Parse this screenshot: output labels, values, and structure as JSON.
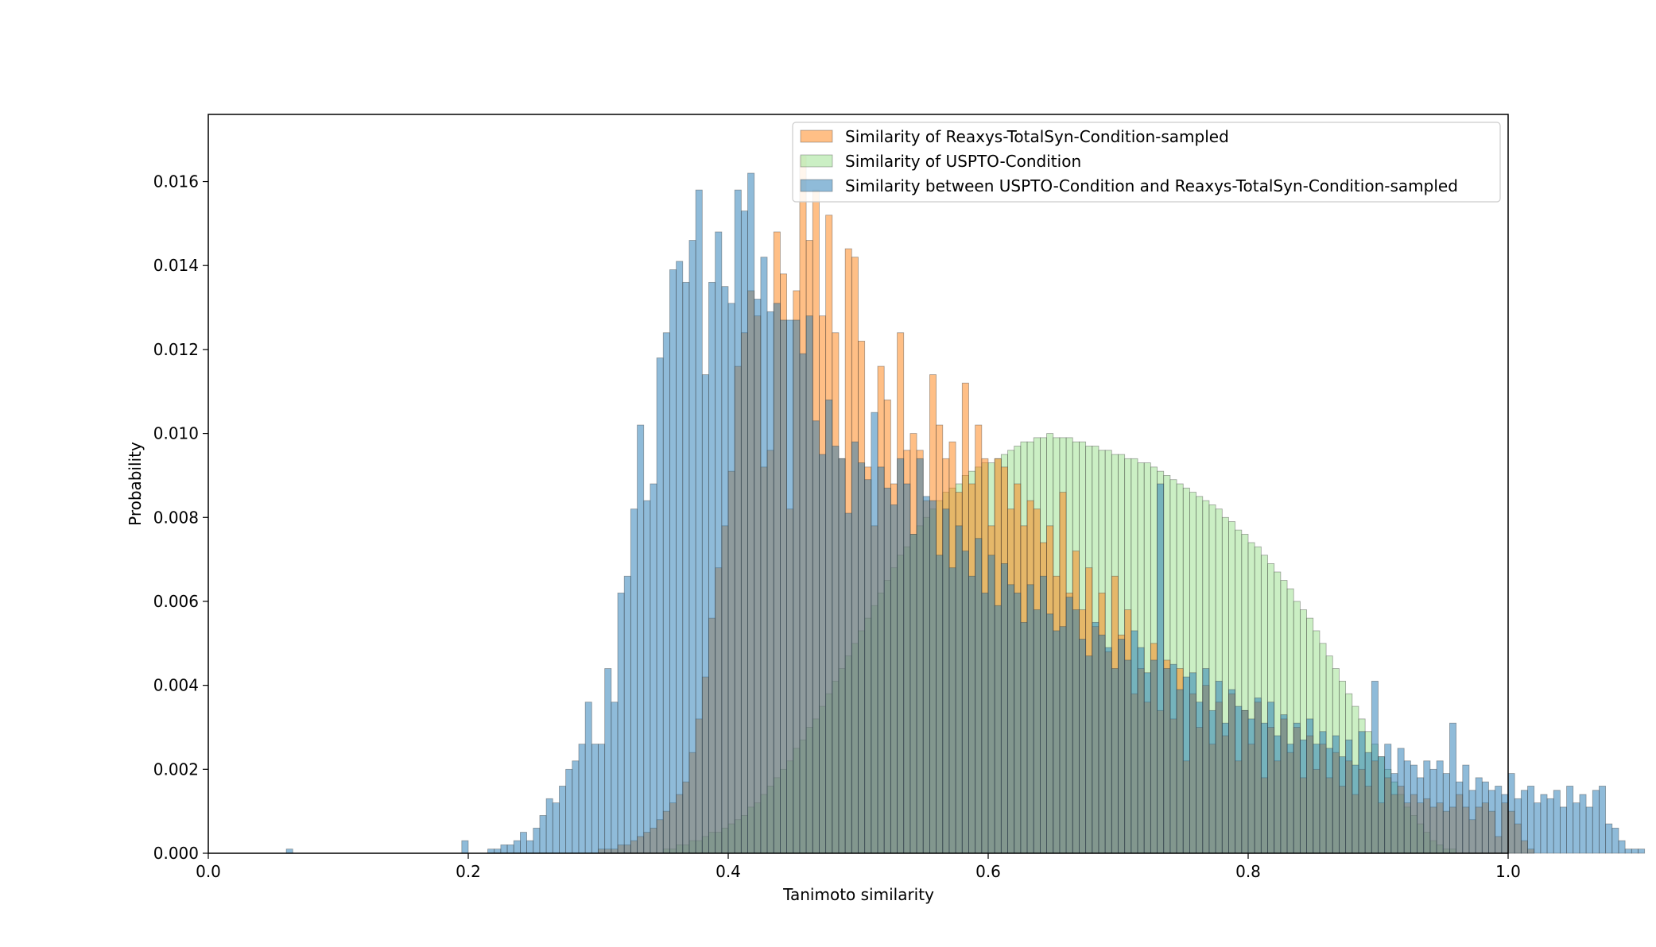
{
  "chart_data": {
    "type": "histogram",
    "title": "",
    "xlabel": "Tanimoto similarity",
    "ylabel": "Probability",
    "xlim": [
      0.0,
      1.0
    ],
    "ylim": [
      0.0,
      0.0176
    ],
    "xticks": [
      "0.0",
      "0.2",
      "0.4",
      "0.6",
      "0.8",
      "1.0"
    ],
    "yticks": [
      "0.000",
      "0.002",
      "0.004",
      "0.006",
      "0.008",
      "0.010",
      "0.012",
      "0.014",
      "0.016"
    ],
    "bin_width": 0.005,
    "legend_position": "upper-right",
    "grid": false,
    "series": [
      {
        "name": "Similarity of USPTO-Condition",
        "color": "#98df8a",
        "bin_start": 0.35,
        "values": [
          0.0001,
          0.0001,
          0.0002,
          0.0002,
          0.0003,
          0.0003,
          0.0004,
          0.0005,
          0.0005,
          0.0006,
          0.0007,
          0.0008,
          0.0009,
          0.0011,
          0.0012,
          0.0014,
          0.0016,
          0.0018,
          0.002,
          0.0022,
          0.0025,
          0.0027,
          0.003,
          0.0032,
          0.0035,
          0.0038,
          0.0041,
          0.0044,
          0.0047,
          0.005,
          0.0053,
          0.0056,
          0.0059,
          0.0062,
          0.0065,
          0.0068,
          0.0071,
          0.0073,
          0.0076,
          0.0078,
          0.008,
          0.0082,
          0.0084,
          0.0086,
          0.0087,
          0.0088,
          0.009,
          0.0091,
          0.0092,
          0.0093,
          0.0093,
          0.0094,
          0.0095,
          0.0096,
          0.0097,
          0.0098,
          0.0098,
          0.0099,
          0.0099,
          0.01,
          0.0099,
          0.0099,
          0.0099,
          0.0098,
          0.0098,
          0.0097,
          0.0097,
          0.0096,
          0.0096,
          0.0095,
          0.0095,
          0.0094,
          0.0094,
          0.0093,
          0.0093,
          0.0092,
          0.0091,
          0.009,
          0.0089,
          0.0088,
          0.0087,
          0.0086,
          0.0085,
          0.0084,
          0.0083,
          0.0082,
          0.008,
          0.0079,
          0.0077,
          0.0076,
          0.0074,
          0.0073,
          0.0071,
          0.0069,
          0.0067,
          0.0065,
          0.0063,
          0.006,
          0.0058,
          0.0056,
          0.0053,
          0.005,
          0.0047,
          0.0044,
          0.0041,
          0.0038,
          0.0035,
          0.0032,
          0.0029,
          0.0026,
          0.0023,
          0.002,
          0.0017,
          0.0014,
          0.0011,
          0.0009,
          0.0007,
          0.0005,
          0.0003,
          0.0002,
          0.0001,
          0.0001
        ]
      },
      {
        "name": "Similarity of Reaxys-TotalSyn-Condition-sampled",
        "color": "#ff7f0e",
        "bin_start": 0.3,
        "values": [
          0.0001,
          0.0001,
          0.0001,
          0.0002,
          0.0002,
          0.0003,
          0.0004,
          0.0005,
          0.0006,
          0.0008,
          0.001,
          0.0012,
          0.0014,
          0.0017,
          0.0024,
          0.0032,
          0.0042,
          0.0056,
          0.0068,
          0.0078,
          0.0091,
          0.0116,
          0.0124,
          0.0134,
          0.0128,
          0.0092,
          0.0096,
          0.0148,
          0.0138,
          0.0082,
          0.0134,
          0.0166,
          0.0146,
          0.0158,
          0.0128,
          0.0152,
          0.0124,
          0.0094,
          0.0144,
          0.0142,
          0.0122,
          0.0092,
          0.0078,
          0.0116,
          0.0108,
          0.0088,
          0.0124,
          0.0096,
          0.01,
          0.0096,
          0.0084,
          0.0114,
          0.0102,
          0.0094,
          0.0098,
          0.0086,
          0.0112,
          0.0088,
          0.0102,
          0.0094,
          0.0078,
          0.0094,
          0.0092,
          0.0082,
          0.0088,
          0.0078,
          0.0084,
          0.0082,
          0.0074,
          0.0078,
          0.0066,
          0.0086,
          0.0062,
          0.0072,
          0.0058,
          0.0068,
          0.0054,
          0.0062,
          0.0048,
          0.0066,
          0.0052,
          0.0058,
          0.0038,
          0.0044,
          0.0036,
          0.005,
          0.0034,
          0.0046,
          0.0032,
          0.0044,
          0.0022,
          0.0038,
          0.003,
          0.004,
          0.0026,
          0.0036,
          0.0028,
          0.0038,
          0.0022,
          0.0034,
          0.0026,
          0.0036,
          0.0018,
          0.003,
          0.0022,
          0.0032,
          0.0024,
          0.003,
          0.0018,
          0.0028,
          0.002,
          0.0026,
          0.0018,
          0.0024,
          0.0016,
          0.0022,
          0.0014,
          0.002,
          0.0016,
          0.0022,
          0.0012,
          0.0018,
          0.0014,
          0.0016,
          0.0012,
          0.0014,
          0.0012,
          0.0013,
          0.0011,
          0.0012,
          0.001,
          0.0011,
          0.0014,
          0.0011,
          0.0008,
          0.0011,
          0.0012,
          0.001,
          0.0004,
          0.0012,
          0.001,
          0.0007,
          0.0003,
          0.0001
        ]
      },
      {
        "name": "Similarity between USPTO-Condition and Reaxys-TotalSyn-Condition-sampled",
        "color": "#1f77b4",
        "bin_start": 0.06,
        "values": [
          0.0001,
          0,
          0,
          0,
          0,
          0,
          0,
          0,
          0,
          0,
          0,
          0,
          0,
          0,
          0,
          0,
          0,
          0,
          0,
          0,
          0,
          0,
          0,
          0,
          0,
          0,
          0,
          0.0003,
          0,
          0,
          0,
          0.0001,
          0.0001,
          0.0002,
          0.0002,
          0.0003,
          0.0005,
          0.0003,
          0.0006,
          0.0009,
          0.0013,
          0.0012,
          0.0016,
          0.002,
          0.0022,
          0.0026,
          0.0036,
          0.0026,
          0.0026,
          0.0044,
          0.0036,
          0.0062,
          0.0066,
          0.0082,
          0.0102,
          0.0084,
          0.0088,
          0.0118,
          0.0124,
          0.0139,
          0.0141,
          0.0136,
          0.0146,
          0.0158,
          0.0114,
          0.0136,
          0.0148,
          0.0135,
          0.0131,
          0.0158,
          0.0153,
          0.0162,
          0.0132,
          0.0142,
          0.0129,
          0.0131,
          0.0127,
          0.0127,
          0.0127,
          0.0119,
          0.0128,
          0.0103,
          0.0095,
          0.0108,
          0.0097,
          0.0094,
          0.0081,
          0.0098,
          0.0093,
          0.0089,
          0.0105,
          0.0092,
          0.0087,
          0.0083,
          0.0094,
          0.0088,
          0.0076,
          0.0094,
          0.0085,
          0.0084,
          0.0071,
          0.0082,
          0.0068,
          0.0078,
          0.0072,
          0.0066,
          0.0075,
          0.0062,
          0.0071,
          0.0059,
          0.0069,
          0.0064,
          0.0062,
          0.0055,
          0.0064,
          0.0058,
          0.0066,
          0.0057,
          0.0053,
          0.0054,
          0.0061,
          0.0058,
          0.0051,
          0.0047,
          0.0055,
          0.0052,
          0.0049,
          0.0044,
          0.0051,
          0.0046,
          0.0053,
          0.0049,
          0.0043,
          0.0046,
          0.0088,
          0.0044,
          0.0045,
          0.0039,
          0.0042,
          0.0043,
          0.0036,
          0.0044,
          0.0034,
          0.0041,
          0.0031,
          0.0039,
          0.0035,
          0.0034,
          0.0032,
          0.0037,
          0.0031,
          0.0036,
          0.0028,
          0.0033,
          0.0026,
          0.0031,
          0.0027,
          0.0032,
          0.0026,
          0.0029,
          0.0025,
          0.0028,
          0.0023,
          0.0027,
          0.0021,
          0.0029,
          0.0024,
          0.0041,
          0.0023,
          0.0026,
          0.0019,
          0.0025,
          0.0022,
          0.0021,
          0.0018,
          0.0022,
          0.002,
          0.0022,
          0.0019,
          0.0031,
          0.0017,
          0.0021,
          0.0015,
          0.0018,
          0.0017,
          0.0015,
          0.0016,
          0.0014,
          0.0019,
          0.0013,
          0.0015,
          0.0016,
          0.0012,
          0.0014,
          0.0013,
          0.0015,
          0.0011,
          0.0016,
          0.0012,
          0.0014,
          0.0011,
          0.0015,
          0.0016,
          0.0007,
          0.0006,
          0.0003,
          0.0001,
          0.0001,
          0.0001
        ]
      }
    ]
  }
}
